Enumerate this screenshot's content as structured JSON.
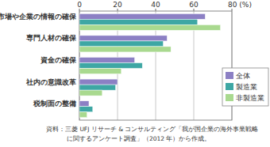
{
  "chart_data": {
    "type": "bar",
    "orientation": "horizontal",
    "categories": [
      "市場や企業の情報の確保",
      "専門人材の確保",
      "資金の確保",
      "社内の意識改革",
      "税制面の整備"
    ],
    "series": [
      {
        "name": "全体",
        "color": "#8c80c4",
        "values": [
          66,
          46,
          29,
          20,
          5
        ]
      },
      {
        "name": "製造業",
        "color": "#3ea7a4",
        "values": [
          62,
          44,
          33,
          19,
          7
        ]
      },
      {
        "name": "非製造業",
        "color": "#a9d98f",
        "values": [
          74,
          48,
          22,
          12,
          4
        ]
      }
    ],
    "xlim": [
      0,
      80
    ],
    "xticks": [
      0,
      20,
      40,
      60,
      {
        "value": 80,
        "label": "80 (%)"
      }
    ],
    "grid": true,
    "legend": "lower right",
    "source": [
      "資料：三菱 UFJ リサーチ & コンサルティング「我が国企業の海外事業戦略",
      "に関するアンケート調査」（2012 年）から作成。"
    ]
  }
}
